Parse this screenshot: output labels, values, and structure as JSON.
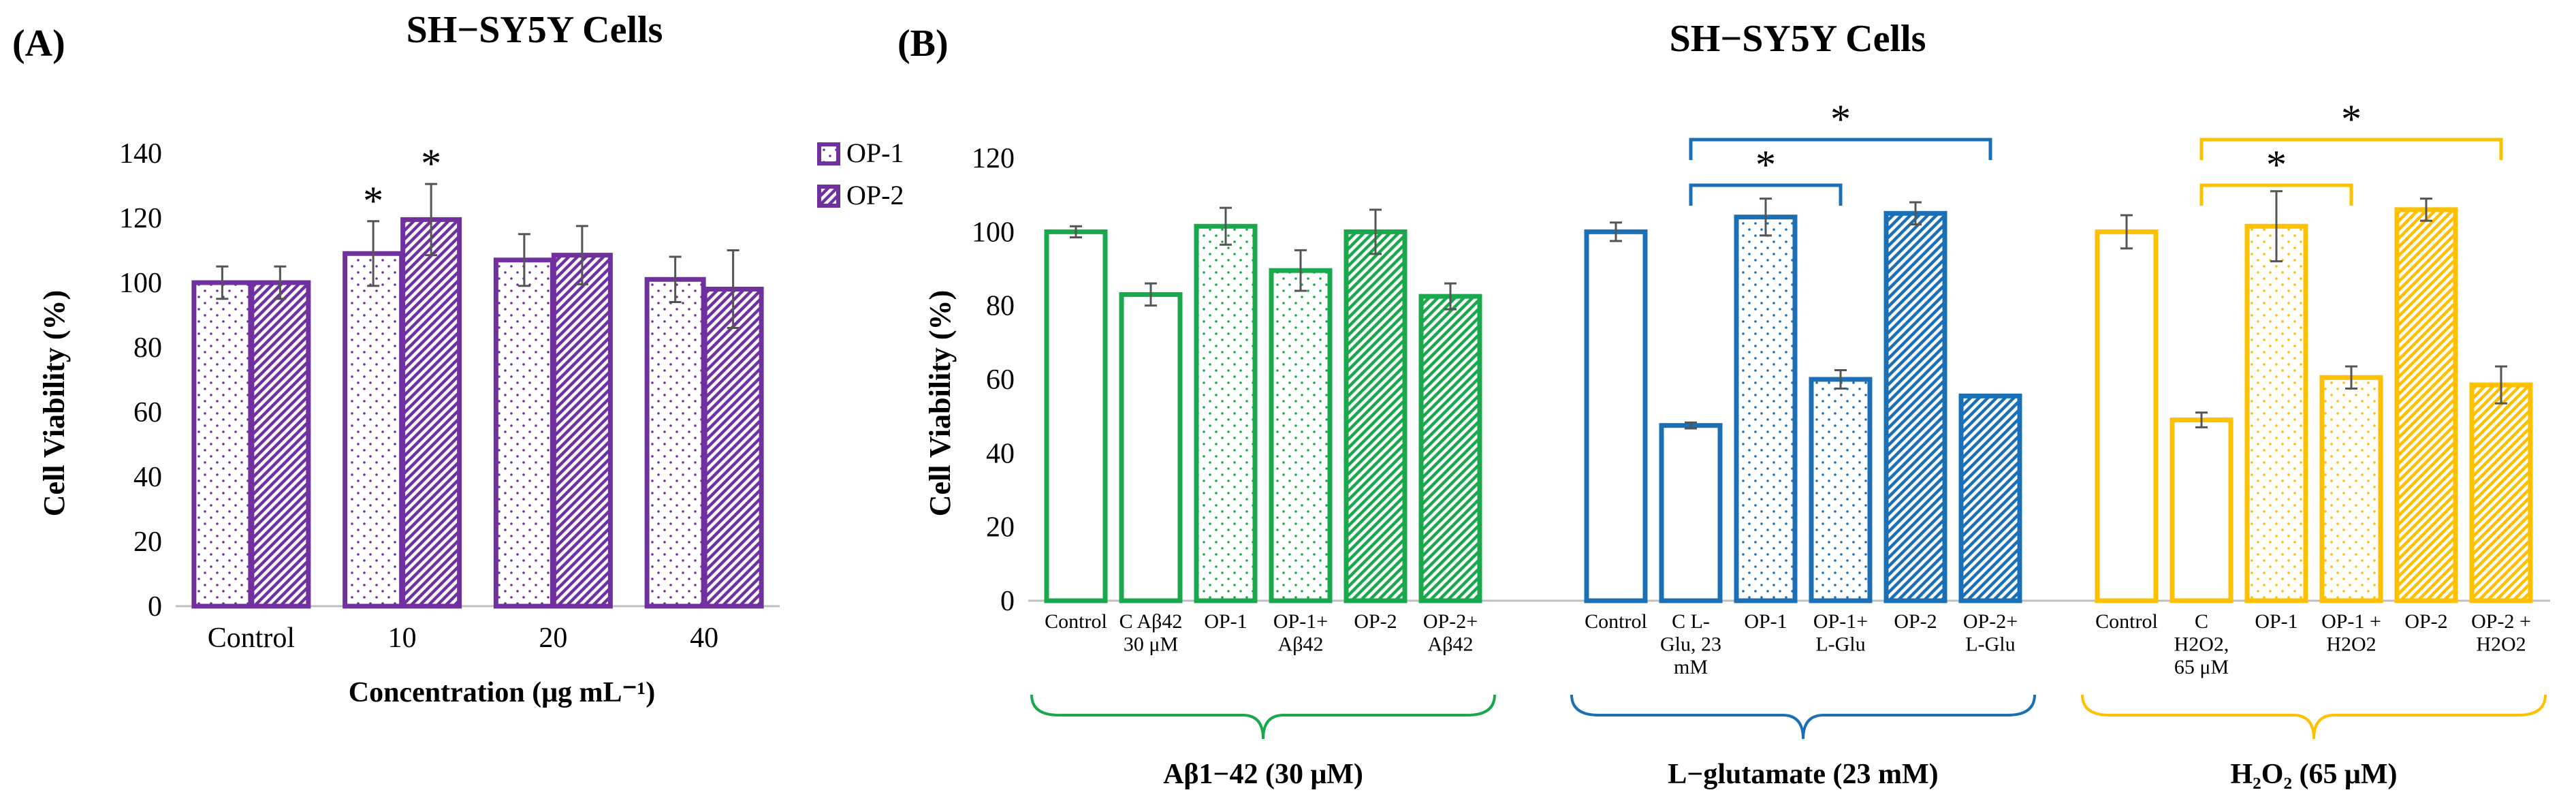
{
  "colors": {
    "purple": "#7030A0",
    "green": "#19A84B",
    "blue": "#1B6FB5",
    "gold": "#FFC000",
    "error": "#555555",
    "axis": "#BFBFBF",
    "text": "#000000"
  },
  "chart_data": [
    {
      "id": "A",
      "panel_label": "(A)",
      "type": "bar",
      "title": "SH−SY5Y Cells",
      "ylabel": "Cell Viability (%)",
      "xlabel": "Concentration (μg mL⁻¹)",
      "ylim": [
        0,
        140
      ],
      "yticks": [
        "0",
        "20",
        "40",
        "60",
        "80",
        "100",
        "120",
        "140"
      ],
      "grid": false,
      "legend_position": "top-right",
      "categories": [
        "Control",
        "10",
        "20",
        "40"
      ],
      "series": [
        {
          "name": "OP-1",
          "pattern": "dots",
          "values": [
            100,
            109,
            107,
            101
          ],
          "errors": [
            5,
            10,
            8,
            7
          ]
        },
        {
          "name": "OP-2",
          "pattern": "stripes",
          "values": [
            100,
            119.5,
            108.5,
            98
          ],
          "errors": [
            5,
            11,
            9,
            12
          ]
        }
      ],
      "annotations": [
        {
          "text": "*",
          "category": "10",
          "series": "OP-1"
        },
        {
          "text": "*",
          "category": "10",
          "series": "OP-2"
        }
      ]
    },
    {
      "id": "B",
      "panel_label": "(B)",
      "type": "bar",
      "title": "SH−SY5Y Cells",
      "ylabel": "Cell Viability (%)",
      "ylim": [
        0,
        120
      ],
      "yticks": [
        "0",
        "20",
        "40",
        "60",
        "80",
        "100",
        "120"
      ],
      "grid": false,
      "groups": [
        {
          "name": "Aβ1−42 (30 μM)",
          "color_key": "green",
          "categories": [
            "Control",
            "C Aβ42\n30 μM",
            "OP-1",
            "OP-1+\nAβ42",
            "OP-2",
            "OP-2+\nAβ42"
          ],
          "patterns": [
            "none",
            "none",
            "dots",
            "dots",
            "stripes",
            "stripes"
          ],
          "values": [
            100,
            83,
            101.5,
            89.5,
            100,
            82.5
          ],
          "errors": [
            1.5,
            3,
            5,
            5.5,
            6,
            3.5
          ],
          "significance": []
        },
        {
          "name": "L−glutamate (23 mM)",
          "color_key": "blue",
          "categories": [
            "Control",
            "C L-\nGlu, 23\nmM",
            "OP-1",
            "OP-1+\nL-Glu",
            "OP-2",
            "OP-2+\nL-Glu"
          ],
          "patterns": [
            "none",
            "none",
            "dots",
            "dots",
            "stripes",
            "stripes"
          ],
          "values": [
            100,
            47.5,
            104,
            60,
            105,
            55.5
          ],
          "errors": [
            2.5,
            0.8,
            5,
            2.5,
            3,
            0
          ],
          "significance": [
            {
              "text": "*",
              "from": 1,
              "to": 3,
              "level": 0
            },
            {
              "text": "*",
              "from": 1,
              "to": 5,
              "level": 1
            }
          ]
        },
        {
          "name": "H₂O₂ (65 μM)",
          "color_key": "gold",
          "categories": [
            "Control",
            "C\nH2O2,\n65 μM",
            "OP-1",
            "OP-1 +\nH2O2",
            "OP-2",
            "OP-2 +\nH2O2"
          ],
          "patterns": [
            "none",
            "none",
            "dots",
            "dots",
            "stripes",
            "stripes"
          ],
          "values": [
            100,
            49,
            101.5,
            60.5,
            106,
            58.5
          ],
          "errors": [
            4.5,
            2,
            9.5,
            3,
            3,
            5
          ],
          "significance": [
            {
              "text": "*",
              "from": 1,
              "to": 3,
              "level": 0
            },
            {
              "text": "*",
              "from": 1,
              "to": 5,
              "level": 1
            }
          ]
        }
      ]
    }
  ]
}
